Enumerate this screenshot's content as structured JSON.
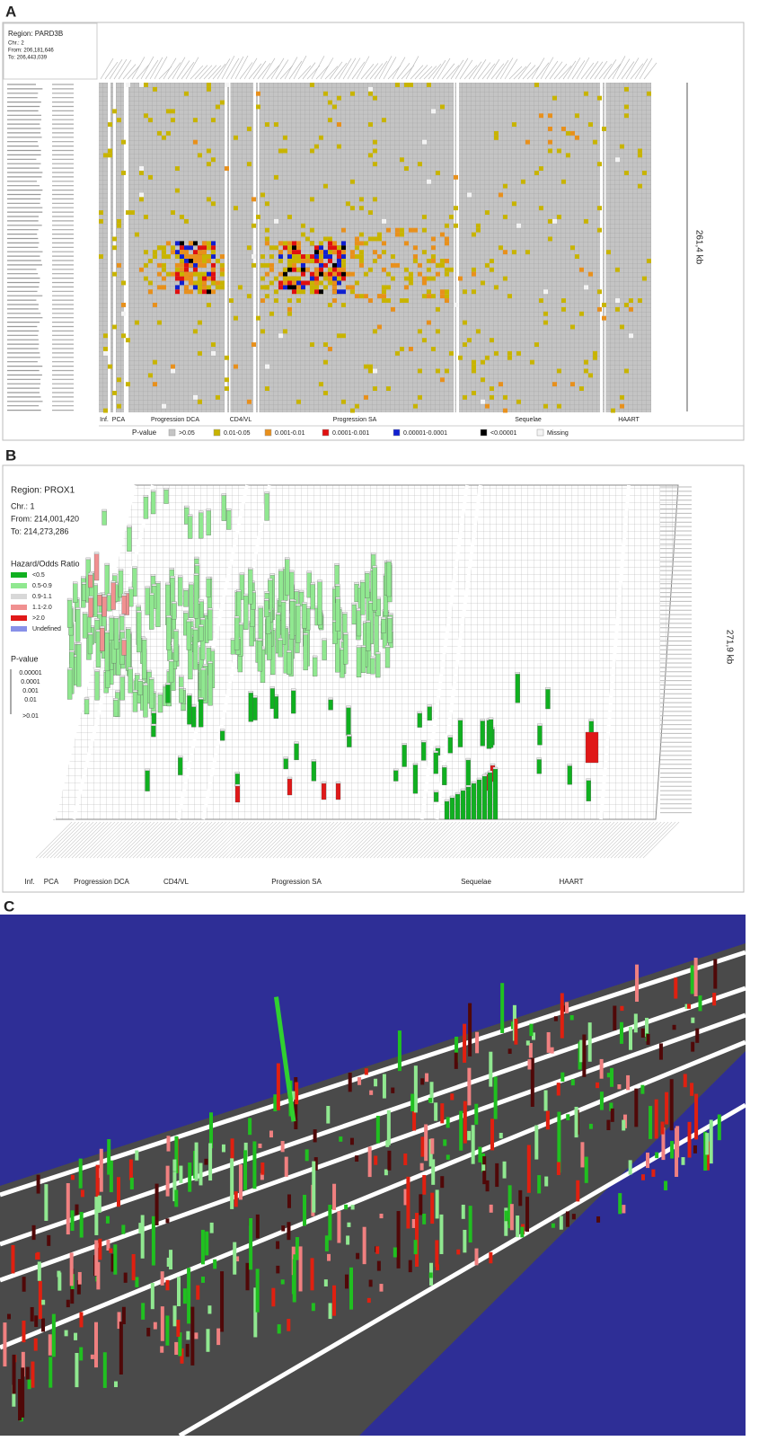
{
  "panel_a": {
    "label": "A",
    "region": "Region:  PARD3B",
    "chr": "Chr.:  2",
    "from": "From:  206,181,646",
    "to": "To:  206,443,039",
    "groups": [
      "Inf.",
      "PCA",
      "Progression DCA",
      "CD4/VL",
      "Progression SA",
      "Sequelae",
      "HAART"
    ],
    "span": "261,4 kb",
    "legend_title": "P-value",
    "legend": [
      {
        "label": ">0.05",
        "color": "#c4c4c4"
      },
      {
        "label": "0.01-0.05",
        "color": "#c8b400"
      },
      {
        "label": "0.001-0.01",
        "color": "#e8901c"
      },
      {
        "label": "0.0001-0.001",
        "color": "#e01010"
      },
      {
        "label": "0.00001-0.0001",
        "color": "#1020d0"
      },
      {
        "label": "<0.00001",
        "color": "#000000"
      },
      {
        "label": "Missing",
        "color": "#f4f4f4"
      }
    ]
  },
  "panel_b": {
    "label": "B",
    "region": "Region:  PROX1",
    "chr": "Chr.:  1",
    "from": "From:  214,001,420",
    "to": "To:  214,273,286",
    "legend_title": "Hazard/Odds Ratio",
    "legend": [
      {
        "label": "<0.5",
        "color": "#10b020"
      },
      {
        "label": "0.5-0.9",
        "color": "#90e890"
      },
      {
        "label": "0.9-1.1",
        "color": "#d8d8d8"
      },
      {
        "label": "1.1-2.0",
        "color": "#f09090"
      },
      {
        "label": ">2.0",
        "color": "#e01818"
      },
      {
        "label": "Undefined",
        "color": "#8890e8"
      }
    ],
    "pvalue_title": "P-value",
    "pvalue_scale": [
      "0.00001",
      "0.0001",
      "0.001",
      "0.01",
      ">0.01"
    ],
    "span": "271,9 kb",
    "groups": [
      "Inf.",
      "PCA",
      "Progression DCA",
      "CD4/VL",
      "Progression SA",
      "Sequelae",
      "HAART"
    ]
  },
  "panel_c": {
    "label": "C"
  }
}
